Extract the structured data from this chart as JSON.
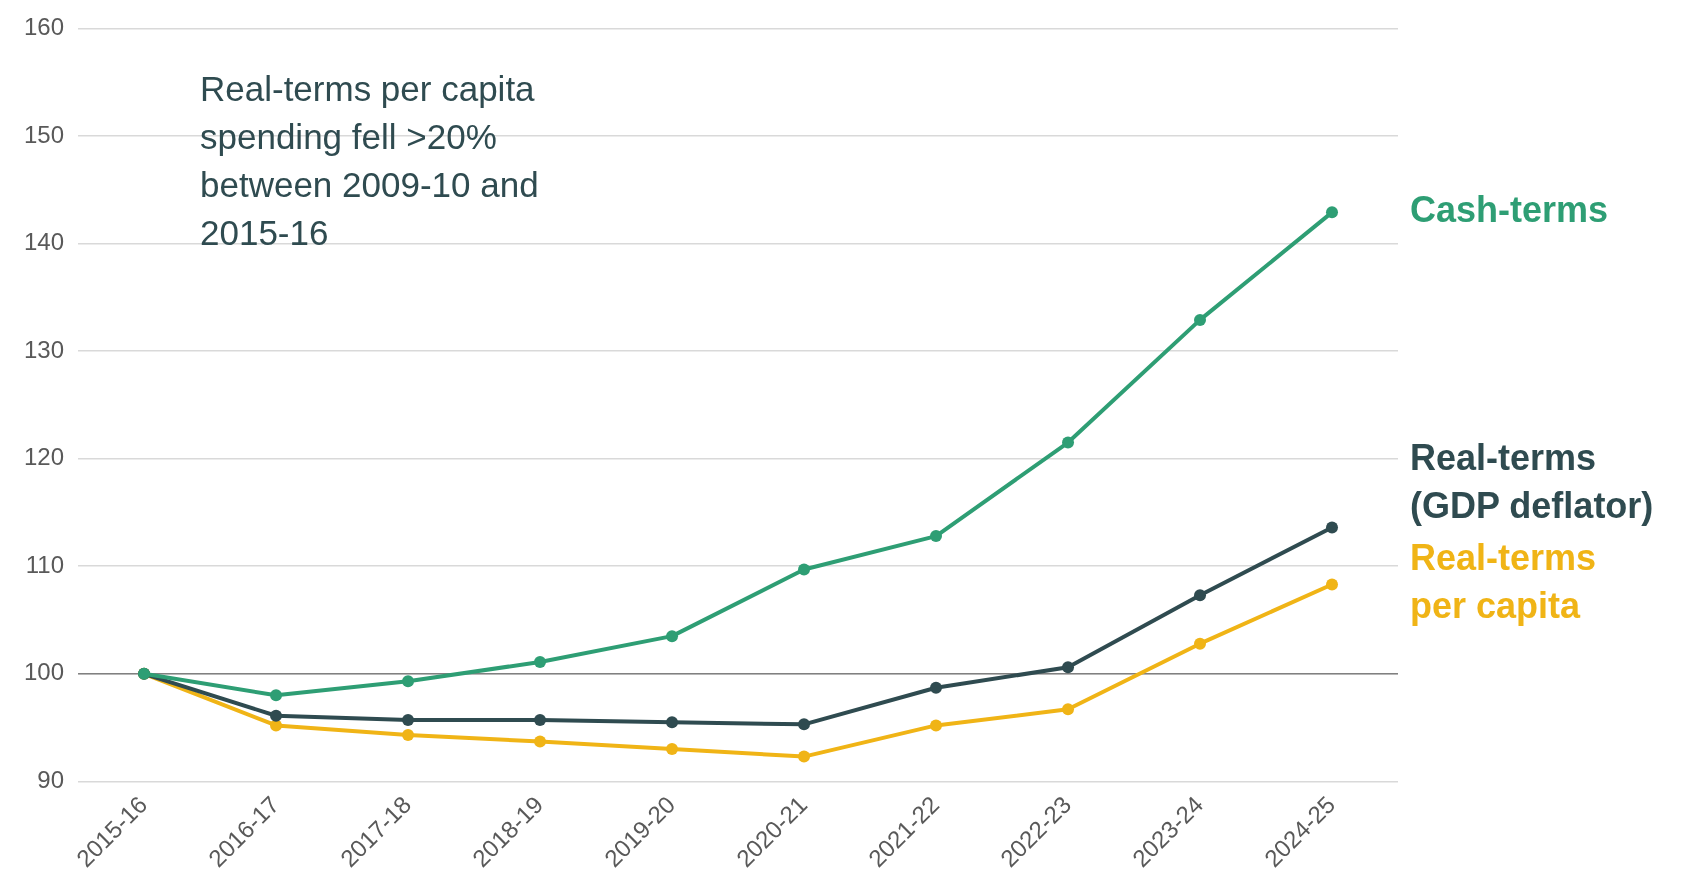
{
  "chart_data": {
    "type": "line",
    "categories": [
      "2015-16",
      "2016-17",
      "2017-18",
      "2018-19",
      "2019-20",
      "2020-21",
      "2021-22",
      "2022-23",
      "2023-24",
      "2024-25"
    ],
    "series": [
      {
        "name": "Cash-terms",
        "color": "#2e9e74",
        "values": [
          100,
          98.0,
          99.3,
          101.1,
          103.5,
          109.7,
          112.8,
          121.5,
          132.9,
          142.9
        ]
      },
      {
        "name": "Real-terms (GDP deflator)",
        "color": "#2f4b50",
        "values": [
          100,
          96.1,
          95.7,
          95.7,
          95.5,
          95.3,
          98.7,
          100.6,
          107.3,
          113.6
        ]
      },
      {
        "name": "Real-terms per capita",
        "color": "#f0b416",
        "values": [
          100,
          95.2,
          94.3,
          93.7,
          93.0,
          92.3,
          95.2,
          96.7,
          102.8,
          108.3
        ]
      }
    ],
    "ylim": [
      90,
      160
    ],
    "yticks": [
      90,
      100,
      110,
      120,
      130,
      140,
      150,
      160
    ],
    "grid": "y",
    "marker": "circle",
    "line_style": "solid",
    "legend": "right",
    "ref_lines": [
      {
        "axis": "y",
        "value": 100,
        "color": "#808080"
      }
    ],
    "annotations": [
      "Real-terms per capita spending fell >20% between 2009-10 and 2015-16"
    ]
  }
}
